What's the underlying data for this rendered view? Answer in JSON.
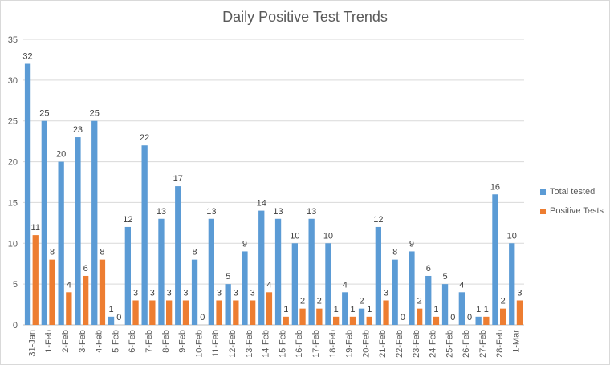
{
  "chart_data": {
    "type": "bar",
    "title": "Daily Positive Test Trends",
    "categories": [
      "31-Jan",
      "1-Feb",
      "2-Feb",
      "3-Feb",
      "4-Feb",
      "5-Feb",
      "6-Feb",
      "7-Feb",
      "8-Feb",
      "9-Feb",
      "10-Feb",
      "11-Feb",
      "12-Feb",
      "13-Feb",
      "14-Feb",
      "15-Feb",
      "16-Feb",
      "17-Feb",
      "18-Feb",
      "19-Feb",
      "20-Feb",
      "21-Feb",
      "22-Feb",
      "23-Feb",
      "24-Feb",
      "25-Feb",
      "26-Feb",
      "27-Feb",
      "28-Feb",
      "1-Mar"
    ],
    "series": [
      {
        "name": "Total tested",
        "color": "#5b9bd5",
        "values": [
          32,
          25,
          20,
          23,
          25,
          1,
          12,
          22,
          13,
          17,
          8,
          13,
          5,
          9,
          14,
          13,
          10,
          13,
          10,
          4,
          2,
          12,
          8,
          9,
          6,
          5,
          4,
          1,
          16,
          10
        ]
      },
      {
        "name": "Positive Tests",
        "color": "#ed7d31",
        "values": [
          11,
          8,
          4,
          6,
          8,
          0,
          3,
          3,
          3,
          3,
          0,
          3,
          3,
          3,
          4,
          1,
          2,
          2,
          1,
          1,
          1,
          3,
          0,
          2,
          1,
          0,
          0,
          1,
          2,
          3
        ]
      }
    ],
    "ylim": [
      0,
      35
    ],
    "yticks": [
      0,
      5,
      10,
      15,
      20,
      25,
      30,
      35
    ],
    "grid": true,
    "legend": "right"
  }
}
